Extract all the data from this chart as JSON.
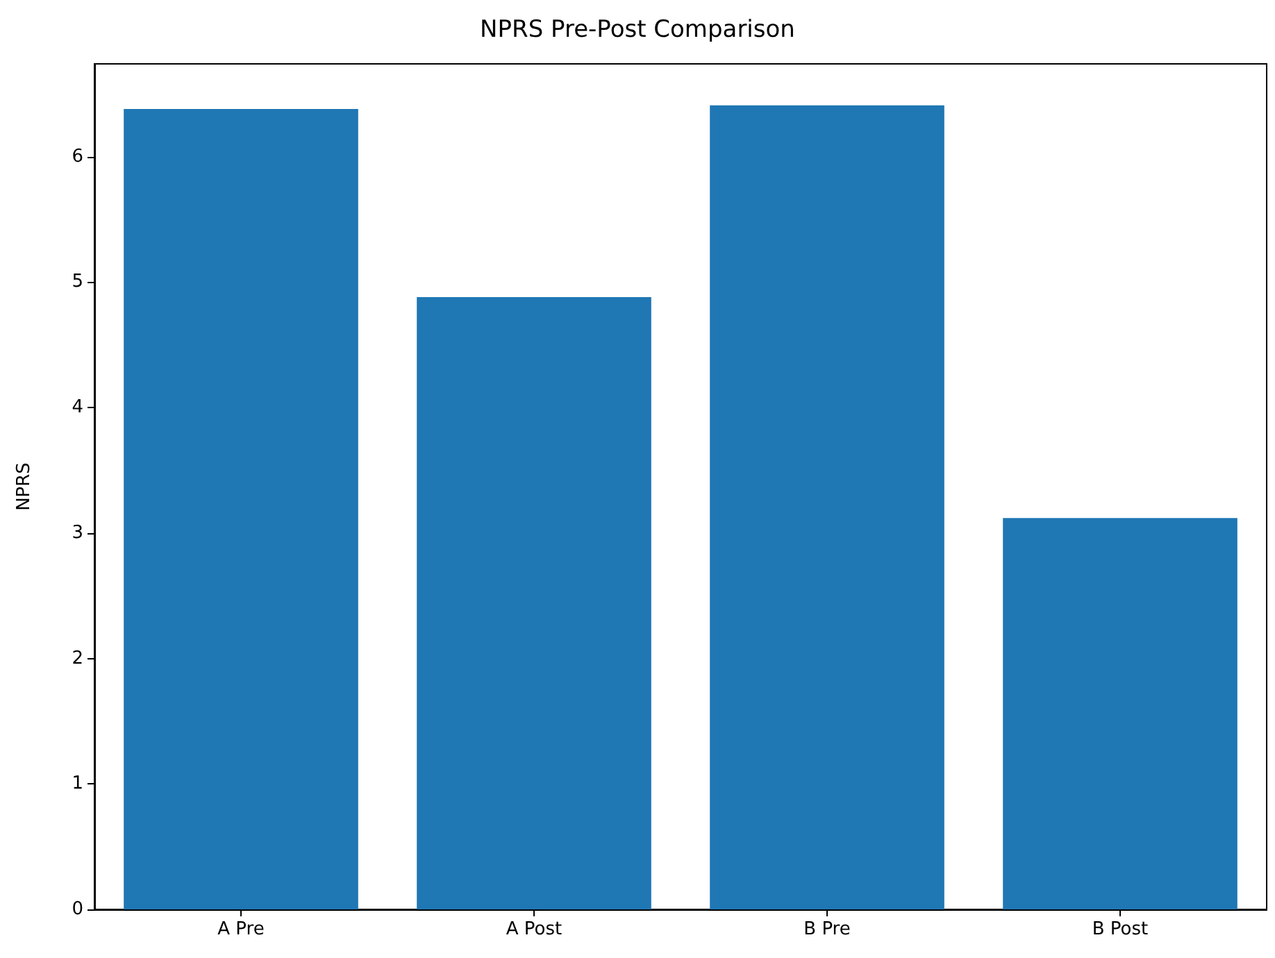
{
  "chart_data": {
    "type": "bar",
    "title": "NPRS Pre-Post Comparison",
    "ylabel": "NPRS",
    "categories": [
      "A Pre",
      "A Post",
      "B Pre",
      "B Post"
    ],
    "values": [
      6.38,
      4.88,
      6.41,
      3.12
    ],
    "color": "#1f77b4",
    "ylim": [
      0,
      6.74
    ],
    "yticks": [
      0,
      1,
      2,
      3,
      4,
      5,
      6
    ],
    "grid": false
  }
}
